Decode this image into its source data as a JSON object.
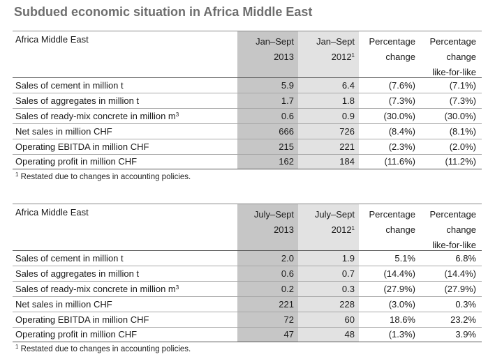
{
  "title": "Subdued economic situation in Africa Middle East",
  "tables": [
    {
      "region": "Africa Middle East",
      "col_current_1": "Jan–Sept",
      "col_current_2": "2013",
      "col_prior_1": "Jan–Sept",
      "col_prior_2": "2012",
      "col_pc_1": "Percentage",
      "col_pc_2": "change",
      "col_lfl_1": "Percentage",
      "col_lfl_2": "change",
      "col_lfl_3": "like-for-like",
      "rows": [
        {
          "label": "Sales of cement in million t",
          "current": "5.9",
          "prior": "6.4",
          "change": "(7.6%)",
          "lfl": "(7.1%)"
        },
        {
          "label": "Sales of aggregates in million t",
          "current": "1.7",
          "prior": "1.8",
          "change": "(7.3%)",
          "lfl": "(7.3%)"
        },
        {
          "label": "Sales of ready-mix concrete in million m",
          "current": "0.6",
          "prior": "0.9",
          "change": "(30.0%)",
          "lfl": "(30.0%)"
        },
        {
          "label": "Net sales in million CHF",
          "current": "666",
          "prior": "726",
          "change": "(8.4%)",
          "lfl": "(8.1%)"
        },
        {
          "label": "Operating EBITDA in million CHF",
          "current": "215",
          "prior": "221",
          "change": "(2.3%)",
          "lfl": "(2.0%)"
        },
        {
          "label": "Operating profit in million CHF",
          "current": "162",
          "prior": "184",
          "change": "(11.6%)",
          "lfl": "(11.2%)"
        }
      ],
      "footnote": "Restated due to changes in accounting policies."
    },
    {
      "region": "Africa Middle East",
      "col_current_1": "July–Sept",
      "col_current_2": "2013",
      "col_prior_1": "July–Sept",
      "col_prior_2": "2012",
      "col_pc_1": "Percentage",
      "col_pc_2": "change",
      "col_lfl_1": "Percentage",
      "col_lfl_2": "change",
      "col_lfl_3": "like-for-like",
      "rows": [
        {
          "label": "Sales of cement in million t",
          "current": "2.0",
          "prior": "1.9",
          "change": "5.1%",
          "lfl": "6.8%"
        },
        {
          "label": "Sales of aggregates in million t",
          "current": "0.6",
          "prior": "0.7",
          "change": "(14.4%)",
          "lfl": "(14.4%)"
        },
        {
          "label": "Sales of ready-mix concrete in million m",
          "current": "0.2",
          "prior": "0.3",
          "change": "(27.9%)",
          "lfl": "(27.9%)"
        },
        {
          "label": "Net sales in million CHF",
          "current": "221",
          "prior": "228",
          "change": "(3.0%)",
          "lfl": "0.3%"
        },
        {
          "label": "Operating EBITDA in million CHF",
          "current": "72",
          "prior": "60",
          "change": "18.6%",
          "lfl": "23.2%"
        },
        {
          "label": "Operating profit in million CHF",
          "current": "47",
          "prior": "48",
          "change": "(1.3%)",
          "lfl": "3.9%"
        }
      ],
      "footnote": "Restated due to changes in accounting policies."
    }
  ],
  "footnote_marker": "1",
  "cubic_marker": "3"
}
